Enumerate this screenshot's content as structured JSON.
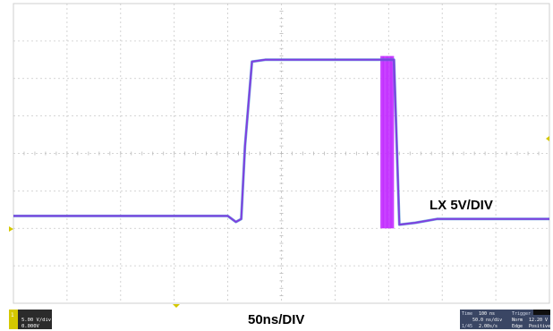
{
  "chart_data": {
    "type": "line",
    "title": "",
    "xlabel": "50ns/DIV",
    "ylabel": "",
    "grid": true,
    "x_divisions": 10,
    "y_divisions": 8,
    "xlim": [
      0,
      10
    ],
    "ylim": [
      0,
      8
    ],
    "series": [
      {
        "name": "LX 5V/DIV",
        "color": "#7f3fe0",
        "x": [
          0,
          4.0,
          4.15,
          4.25,
          4.32,
          4.45,
          4.7,
          6.7,
          6.9,
          7.1,
          7.2,
          7.5,
          7.9,
          10
        ],
        "y": [
          2.33,
          2.33,
          2.17,
          2.25,
          4.2,
          6.45,
          6.5,
          6.5,
          6.5,
          6.5,
          2.1,
          2.15,
          2.25,
          2.25
        ]
      }
    ],
    "ringing": {
      "x_start": 6.85,
      "x_end": 7.1,
      "y_min": 2.0,
      "y_max": 6.6,
      "color": "#b400ff"
    }
  },
  "annotations": {
    "channel_label": "LX 5V/DIV",
    "time_label": "50ns/DIV"
  },
  "panels": {
    "left": {
      "line1": "1",
      "line2": "5.00 V/div",
      "line3": "0.000V"
    },
    "right": {
      "col1": [
        "Time",
        "1/45"
      ],
      "col2": [
        "100 ns",
        "50.0 ns/div",
        "2.00s/s"
      ],
      "col3": [
        "Trigger",
        "Norm",
        "Edge"
      ],
      "col4": [
        "12.20 V",
        "Positive"
      ]
    }
  }
}
